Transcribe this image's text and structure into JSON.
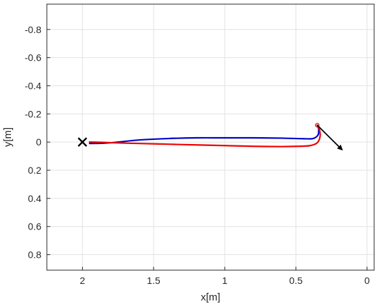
{
  "chart_data": {
    "type": "line",
    "title": "",
    "xlabel": "x[m]",
    "ylabel": "y[m]",
    "xlim": [
      2.25,
      -0.05
    ],
    "ylim": [
      -0.98,
      0.91
    ],
    "x_reversed": true,
    "y_reversed": true,
    "grid": true,
    "xticks": [
      2,
      1.5,
      1,
      0.5,
      0
    ],
    "xtick_labels": [
      "2",
      "1.5",
      "1",
      "0.5",
      "0"
    ],
    "yticks": [
      -0.8,
      -0.6,
      -0.4,
      -0.2,
      0,
      0.2,
      0.4,
      0.6,
      0.8
    ],
    "ytick_labels": [
      "-0.8",
      "-0.6",
      "-0.4",
      "-0.2",
      "0",
      "0.2",
      "0.4",
      "0.6",
      "0.8"
    ],
    "series": [
      {
        "color": "#0000cc",
        "points": [
          [
            1.95,
            0.01
          ],
          [
            1.85,
            0.008
          ],
          [
            1.75,
            0.0
          ],
          [
            1.6,
            -0.015
          ],
          [
            1.4,
            -0.025
          ],
          [
            1.2,
            -0.03
          ],
          [
            1.0,
            -0.03
          ],
          [
            0.8,
            -0.03
          ],
          [
            0.6,
            -0.028
          ],
          [
            0.45,
            -0.024
          ],
          [
            0.38,
            -0.025
          ],
          [
            0.345,
            -0.05
          ],
          [
            0.34,
            -0.09
          ],
          [
            0.345,
            -0.11
          ],
          [
            0.35,
            -0.12
          ]
        ]
      },
      {
        "color": "#ee0000",
        "points": [
          [
            1.95,
            0.0
          ],
          [
            1.85,
            0.002
          ],
          [
            1.78,
            0.005
          ],
          [
            1.6,
            0.01
          ],
          [
            1.4,
            0.015
          ],
          [
            1.2,
            0.02
          ],
          [
            1.0,
            0.025
          ],
          [
            0.8,
            0.03
          ],
          [
            0.6,
            0.032
          ],
          [
            0.48,
            0.03
          ],
          [
            0.4,
            0.025
          ],
          [
            0.35,
            0.005
          ],
          [
            0.33,
            -0.04
          ],
          [
            0.335,
            -0.09
          ],
          [
            0.35,
            -0.12
          ]
        ]
      }
    ],
    "start_marker": {
      "symbol": "×",
      "x": 2.0,
      "y": 0.0,
      "color": "#000000"
    },
    "end_marker": {
      "symbol": "o",
      "x": 0.35,
      "y": -0.12,
      "color": "#cc0000"
    },
    "heading_arrow": {
      "from": [
        0.35,
        -0.12
      ],
      "to": [
        0.17,
        0.06
      ],
      "color": "#000000"
    }
  }
}
